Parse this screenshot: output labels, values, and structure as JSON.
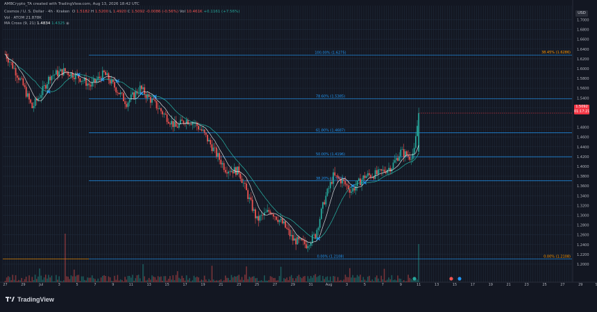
{
  "header": {
    "author_line": "AMBCrypto_TA created with TradingView.com, Aug 13, 2026 18:42 UTC",
    "symbol_line": {
      "title": "Cosmos / U. S. Dollar · 4h · Kraken",
      "o_label": "O",
      "o": "1.5182",
      "h_label": "H",
      "h": "1.5200",
      "l_label": "L",
      "l": "1.4920",
      "c_label": "C",
      "c": "1.5092",
      "chg": "-0.0086 (-0.56%)",
      "vol_label": "Vol",
      "vol": "10.461K",
      "extra": "+0.1161 (+7.56%)"
    },
    "vol_line": "Vol · ATOM   21.878K",
    "ma_line_label": "MA Cross (9, 21)",
    "ma_fast": "1.4834",
    "ma_slow": "1.4325"
  },
  "currency": "USD",
  "price_tag": {
    "price": "1.5092",
    "countdown": "01:17:21",
    "color": "#f23645"
  },
  "brand": "TradingView",
  "colors": {
    "background": "#131722",
    "up": "#26a69a",
    "down": "#ef5350",
    "fib_line": "#2196f3",
    "fib_label": "#2196f3",
    "fib_extreme_label": "#ff9800",
    "ma_fast": "#ffffff",
    "ma_slow": "#26a69a",
    "cross_marker": "#2196f3"
  },
  "chart_data": {
    "type": "candlestick",
    "title": "Cosmos / U. S. Dollar · 4h · Kraken",
    "x_tick_labels": [
      "27",
      "29",
      "Jul",
      "3",
      "5",
      "7",
      "9",
      "11",
      "13",
      "15",
      "17",
      "19",
      "21",
      "23",
      "25",
      "27",
      "29",
      "31",
      "Aug",
      "3",
      "5",
      "7",
      "9",
      "11",
      "13",
      "15",
      "17",
      "19",
      "21",
      "23",
      "25",
      "27",
      "29",
      "Sep"
    ],
    "y_tick_labels": [
      "1.7000",
      "1.6800",
      "1.6600",
      "1.6400",
      "1.6200",
      "1.6000",
      "1.5800",
      "1.5600",
      "1.5400",
      "1.5200",
      "1.4800",
      "1.4600",
      "1.4400",
      "1.4200",
      "1.4000",
      "1.3800",
      "1.3600",
      "1.3400",
      "1.3200",
      "1.3000",
      "1.2800",
      "1.2600",
      "1.2400",
      "1.2200",
      "1.2000"
    ],
    "ylim": [
      1.19,
      1.712
    ],
    "close_path": [
      {
        "d": 0.0,
        "p": 1.63
      },
      {
        "d": 1.0,
        "p": 1.6
      },
      {
        "d": 2.0,
        "p": 1.565
      },
      {
        "d": 3.0,
        "p": 1.52
      },
      {
        "d": 4.0,
        "p": 1.55
      },
      {
        "d": 5.0,
        "p": 1.585
      },
      {
        "d": 6.5,
        "p": 1.595
      },
      {
        "d": 8.0,
        "p": 1.585
      },
      {
        "d": 9.5,
        "p": 1.565
      },
      {
        "d": 11.0,
        "p": 1.59
      },
      {
        "d": 12.5,
        "p": 1.555
      },
      {
        "d": 13.5,
        "p": 1.53
      },
      {
        "d": 15.0,
        "p": 1.56
      },
      {
        "d": 16.5,
        "p": 1.53
      },
      {
        "d": 18.0,
        "p": 1.5
      },
      {
        "d": 19.0,
        "p": 1.48
      },
      {
        "d": 20.0,
        "p": 1.495
      },
      {
        "d": 21.0,
        "p": 1.49
      },
      {
        "d": 22.0,
        "p": 1.47
      },
      {
        "d": 23.0,
        "p": 1.44
      },
      {
        "d": 24.5,
        "p": 1.395
      },
      {
        "d": 26.0,
        "p": 1.39
      },
      {
        "d": 27.0,
        "p": 1.34
      },
      {
        "d": 28.0,
        "p": 1.29
      },
      {
        "d": 29.5,
        "p": 1.31
      },
      {
        "d": 31.0,
        "p": 1.28
      },
      {
        "d": 32.0,
        "p": 1.25
      },
      {
        "d": 33.5,
        "p": 1.24
      },
      {
        "d": 34.5,
        "p": 1.26
      },
      {
        "d": 35.5,
        "p": 1.33
      },
      {
        "d": 36.5,
        "p": 1.38
      },
      {
        "d": 37.5,
        "p": 1.37
      },
      {
        "d": 38.5,
        "p": 1.35
      },
      {
        "d": 40.0,
        "p": 1.38
      },
      {
        "d": 41.5,
        "p": 1.385
      },
      {
        "d": 43.0,
        "p": 1.4
      },
      {
        "d": 44.0,
        "p": 1.43
      },
      {
        "d": 45.0,
        "p": 1.42
      },
      {
        "d": 45.5,
        "p": 1.43
      },
      {
        "d": 46.0,
        "p": 1.509
      }
    ],
    "volume_note": "volume histogram along bottom",
    "fib_levels": [
      {
        "label": "100.00% (1.6275)",
        "price": 1.6275
      },
      {
        "label": "78.60% (1.5385)",
        "price": 1.5385
      },
      {
        "label": "61.80% (1.4687)",
        "price": 1.4687
      },
      {
        "label": "50.00% (1.4196)",
        "price": 1.4196
      },
      {
        "label": "38.20% (1.3705)",
        "price": 1.3705
      },
      {
        "label": "0.00% (1.2108)",
        "price": 1.2108
      }
    ],
    "fib_extreme_labels": [
      {
        "label": "38.45% (1.6286)",
        "price": 1.6286
      },
      {
        "label": "0.00% (1.2108)",
        "price": 1.2108
      }
    ],
    "moving_averages": [
      {
        "name": "MA Cross (9, 21) fast",
        "value": "1.4834"
      },
      {
        "name": "MA Cross (9, 21) slow",
        "value": "1.4325"
      }
    ],
    "grid": true
  }
}
